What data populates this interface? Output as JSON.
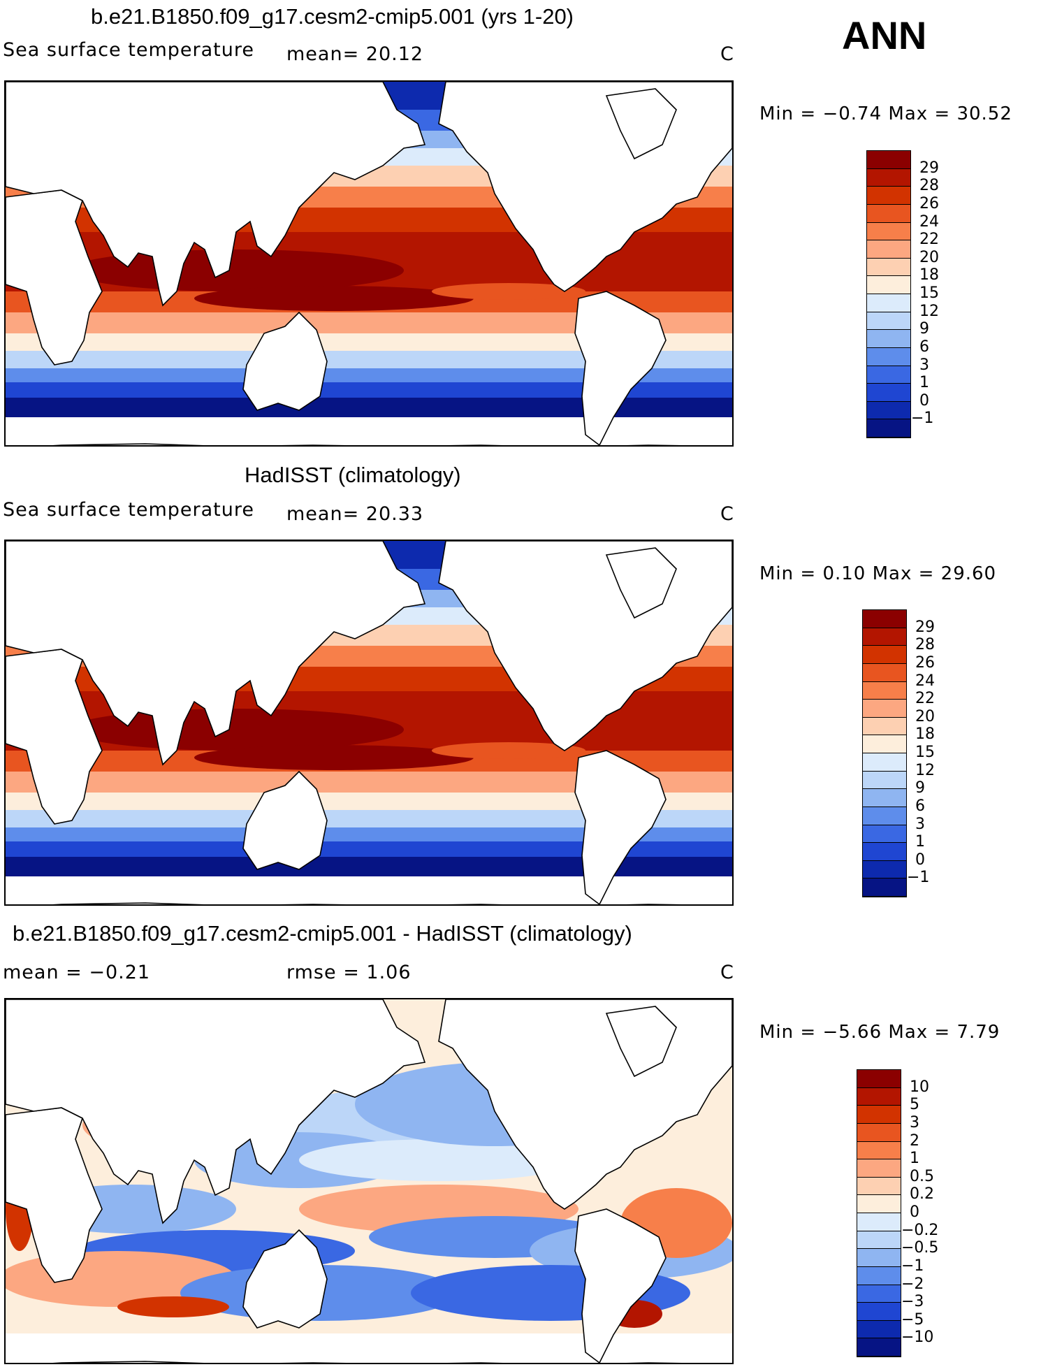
{
  "season": "ANN",
  "panels": [
    {
      "title": "b.e21.B1850.f09_g17.cesm2-cmip5.001 (yrs 1-20)",
      "left_text": "Sea surface temperature",
      "mid_text": "mean=   20.12",
      "units": "C",
      "minmax": "Min =   −0.74  Max =   30.52",
      "colorbar": {
        "colors": [
          "#8b0000",
          "#b31500",
          "#d23300",
          "#e85520",
          "#f77f4a",
          "#fca781",
          "#fdd0b2",
          "#fdeedc",
          "#dcebfb",
          "#bcd6f8",
          "#8fb5f1",
          "#5e8deb",
          "#3a68e3",
          "#1f46d2",
          "#0d2aae",
          "#061484"
        ],
        "labels": [
          "29",
          "28",
          "26",
          "24",
          "22",
          "20",
          "18",
          "15",
          "12",
          "9",
          "6",
          "3",
          "1",
          "0",
          "−1"
        ]
      }
    },
    {
      "title": "HadISST (climatology)",
      "left_text": "Sea surface temperature",
      "mid_text": "mean=   20.33",
      "units": "C",
      "minmax": "Min =    0.10  Max =   29.60",
      "colorbar": {
        "colors": [
          "#8b0000",
          "#b31500",
          "#d23300",
          "#e85520",
          "#f77f4a",
          "#fca781",
          "#fdd0b2",
          "#fdeedc",
          "#dcebfb",
          "#bcd6f8",
          "#8fb5f1",
          "#5e8deb",
          "#3a68e3",
          "#1f46d2",
          "#0d2aae",
          "#061484"
        ],
        "labels": [
          "29",
          "28",
          "26",
          "24",
          "22",
          "20",
          "18",
          "15",
          "12",
          "9",
          "6",
          "3",
          "1",
          "0",
          "−1"
        ]
      }
    },
    {
      "title": "b.e21.B1850.f09_g17.cesm2-cmip5.001 - HadISST (climatology)",
      "left_text": "mean =   −0.21",
      "mid_text": "rmse =    1.06",
      "units": "C",
      "minmax": "Min =   −5.66  Max =    7.79",
      "colorbar": {
        "colors": [
          "#8b0000",
          "#b31500",
          "#d23300",
          "#e85520",
          "#f77f4a",
          "#fca781",
          "#fdd0b2",
          "#fdeedc",
          "#dcebfb",
          "#bcd6f8",
          "#8fb5f1",
          "#5e8deb",
          "#3a68e3",
          "#1f46d2",
          "#0d2aae",
          "#061484"
        ],
        "labels": [
          "10",
          "5",
          "3",
          "2",
          "1",
          "0.5",
          "0.2",
          "0",
          "−0.2",
          "−0.5",
          "−1",
          "−2",
          "−3",
          "−5",
          "−10"
        ]
      }
    }
  ]
}
